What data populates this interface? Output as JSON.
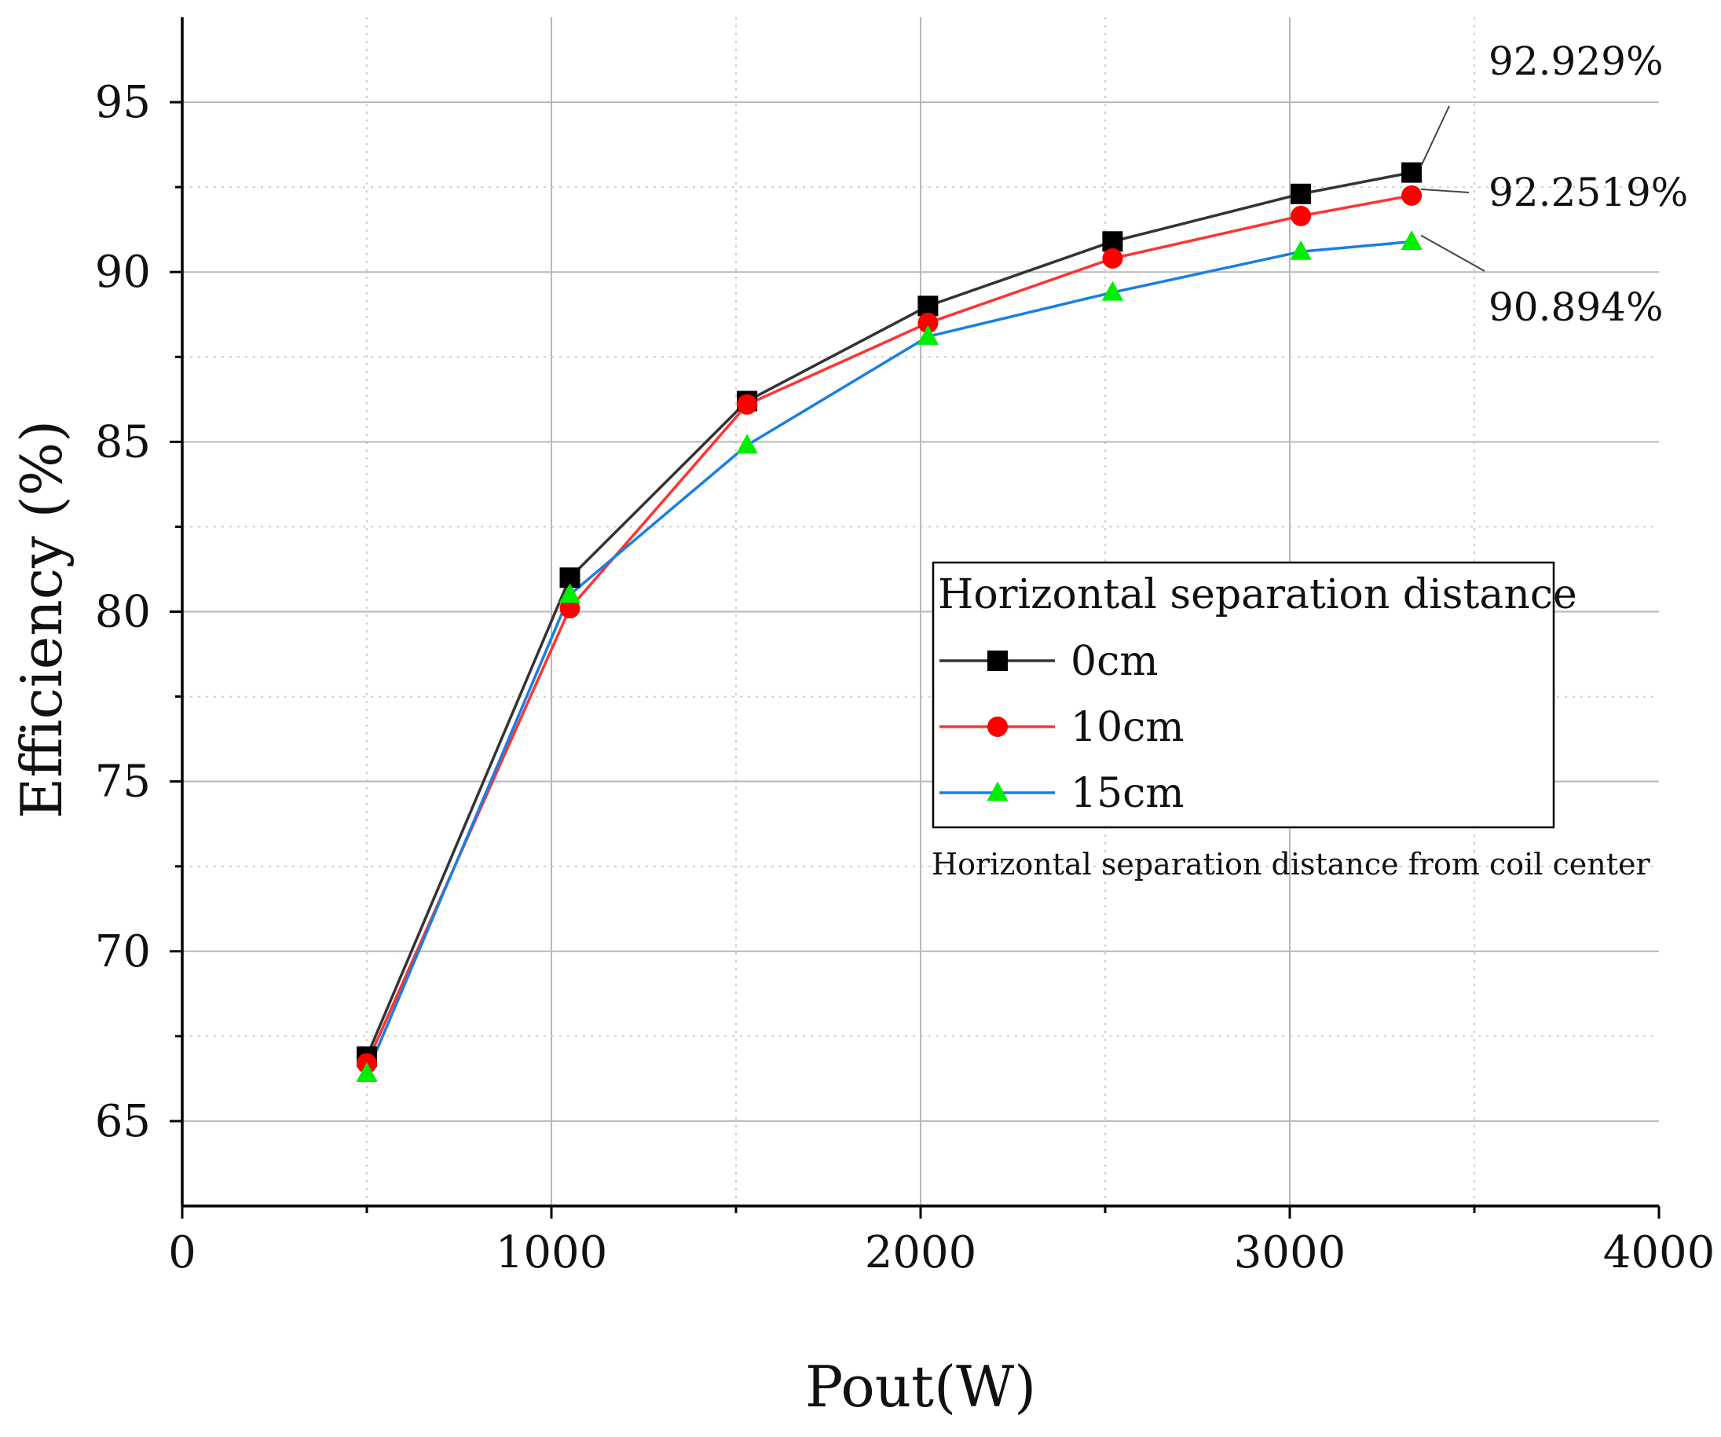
{
  "chart_data": {
    "type": "line",
    "xlabel": "Pout(W)",
    "ylabel": "Efficiency (%)",
    "xlim": [
      0,
      4000
    ],
    "ylim": [
      62.5,
      97.5
    ],
    "x_ticks": [
      0,
      1000,
      2000,
      3000,
      4000
    ],
    "x_tick_labels": [
      "0",
      "1000",
      "2000",
      "3000",
      "4000"
    ],
    "y_ticks": [
      65,
      70,
      75,
      80,
      85,
      90,
      95
    ],
    "y_tick_labels": [
      "65",
      "70",
      "75",
      "80",
      "85",
      "90",
      "95"
    ],
    "grid": true,
    "series": [
      {
        "name": "0cm",
        "color": "#333333",
        "marker": "square",
        "marker_color": "#000000",
        "x": [
          500,
          1050,
          1530,
          2020,
          2520,
          3030,
          3330
        ],
        "y": [
          66.9,
          81.0,
          86.2,
          89.0,
          90.9,
          92.3,
          92.929
        ]
      },
      {
        "name": "10cm",
        "color": "#ff3333",
        "marker": "circle",
        "marker_color": "#ff0000",
        "x": [
          500,
          1050,
          1530,
          2020,
          2520,
          3030,
          3330
        ],
        "y": [
          66.7,
          80.1,
          86.1,
          88.5,
          90.4,
          91.65,
          92.2519
        ]
      },
      {
        "name": "15cm",
        "color": "#1a7fe0",
        "marker": "triangle",
        "marker_color": "#00ee00",
        "x": [
          500,
          1050,
          1530,
          2020,
          2520,
          3030,
          3330
        ],
        "y": [
          66.4,
          80.5,
          84.9,
          88.1,
          89.4,
          90.6,
          90.894
        ]
      }
    ],
    "annotations": [
      {
        "text": "92.929%",
        "series": "0cm",
        "x": 3330,
        "y": 92.929
      },
      {
        "text": "92.2519%",
        "series": "10cm",
        "x": 3330,
        "y": 92.2519
      },
      {
        "text": "90.894%",
        "series": "15cm",
        "x": 3330,
        "y": 90.894
      }
    ],
    "legend": {
      "title": "Horizontal separation distance",
      "placement": "center-right",
      "entries": [
        "0cm",
        "10cm",
        "15cm"
      ]
    },
    "caption": "Horizontal separation distance from coil center"
  }
}
